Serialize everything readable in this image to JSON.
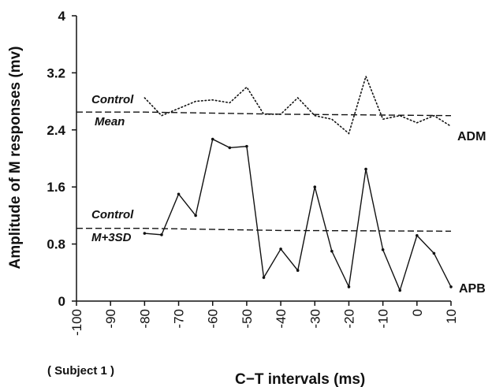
{
  "chart_data": {
    "type": "line",
    "xlabel": "C−T intervals (ms)",
    "ylabel": "Amplitude of M responses (mv)",
    "subject_note": "( Subject 1 )",
    "xlim": [
      -100,
      10
    ],
    "ylim": [
      0,
      4
    ],
    "x_ticks": [
      -100,
      -90,
      -80,
      -70,
      -60,
      -50,
      -40,
      -30,
      -20,
      -10,
      0,
      10
    ],
    "x_tick_labels": [
      "-100",
      "-90",
      "-80",
      "-70",
      "-60",
      "-50",
      "-40",
      "-30",
      "-20",
      "-10",
      "0",
      "10"
    ],
    "y_ticks": [
      0,
      0.8,
      1.6,
      2.4,
      3.2,
      4
    ],
    "y_tick_labels": [
      "0",
      "0.8",
      "1.6",
      "2.4",
      "3.2",
      "4"
    ],
    "series": [
      {
        "name": "ADM",
        "style": "dotted",
        "x": [
          -80,
          -75,
          -70,
          -65,
          -60,
          -55,
          -50,
          -45,
          -40,
          -35,
          -30,
          -25,
          -20,
          -15,
          -10,
          -5,
          0,
          5,
          10
        ],
        "y": [
          2.85,
          2.6,
          2.7,
          2.8,
          2.82,
          2.78,
          3.0,
          2.62,
          2.62,
          2.85,
          2.6,
          2.55,
          2.35,
          3.15,
          2.55,
          2.6,
          2.5,
          2.6,
          2.45
        ]
      },
      {
        "name": "APB",
        "style": "solid",
        "markers": true,
        "x": [
          -80,
          -75,
          -70,
          -65,
          -60,
          -55,
          -50,
          -45,
          -40,
          -35,
          -30,
          -25,
          -20,
          -15,
          -10,
          -5,
          0,
          5,
          10
        ],
        "y": [
          0.95,
          0.93,
          1.5,
          1.2,
          2.27,
          2.15,
          2.17,
          0.33,
          0.73,
          0.43,
          1.6,
          0.7,
          0.2,
          1.85,
          0.72,
          0.15,
          0.92,
          0.67,
          0.2
        ]
      }
    ],
    "reference_lines": [
      {
        "label_lines": [
          "Control",
          "Mean"
        ],
        "style": "dashed",
        "x": [
          -100,
          -80,
          -40,
          10
        ],
        "y": [
          2.65,
          2.65,
          2.62,
          2.6
        ]
      },
      {
        "label_lines": [
          "Control",
          "M+3SD"
        ],
        "style": "dashed",
        "x": [
          -100,
          -80,
          -40,
          10
        ],
        "y": [
          1.02,
          1.02,
          0.99,
          0.98
        ]
      }
    ]
  }
}
